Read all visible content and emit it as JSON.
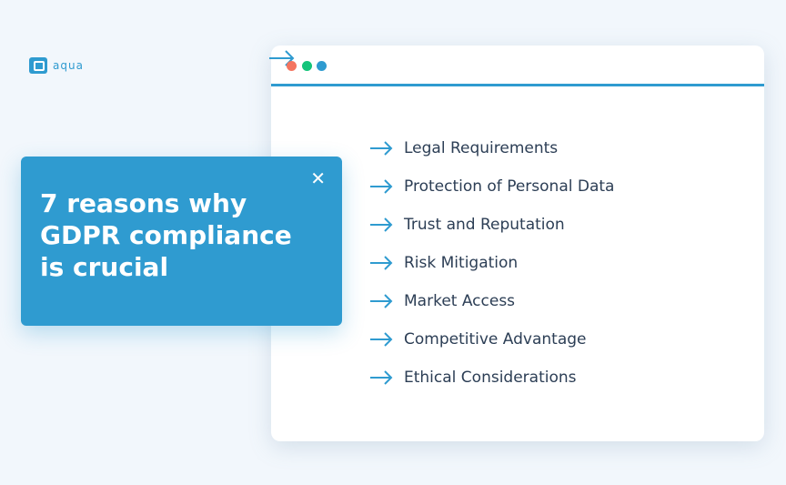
{
  "brand": {
    "name": "aqua",
    "color": "#2f9bd0"
  },
  "window": {
    "dots": [
      {
        "color": "#f47560"
      },
      {
        "color": "#14c47a"
      },
      {
        "color": "#2f9bd0"
      }
    ],
    "accent": "#2f9bd0"
  },
  "card": {
    "title": "7 reasons why GDPR compliance is crucial",
    "close_icon": "close-icon"
  },
  "list": {
    "icon": "arrow-right-icon",
    "items": [
      {
        "label": "Legal Requirements"
      },
      {
        "label": "Protection of Personal Data"
      },
      {
        "label": "Trust and Reputation"
      },
      {
        "label": "Risk Mitigation"
      },
      {
        "label": "Market Access"
      },
      {
        "label": "Competitive Advantage"
      },
      {
        "label": "Ethical Considerations"
      }
    ]
  }
}
